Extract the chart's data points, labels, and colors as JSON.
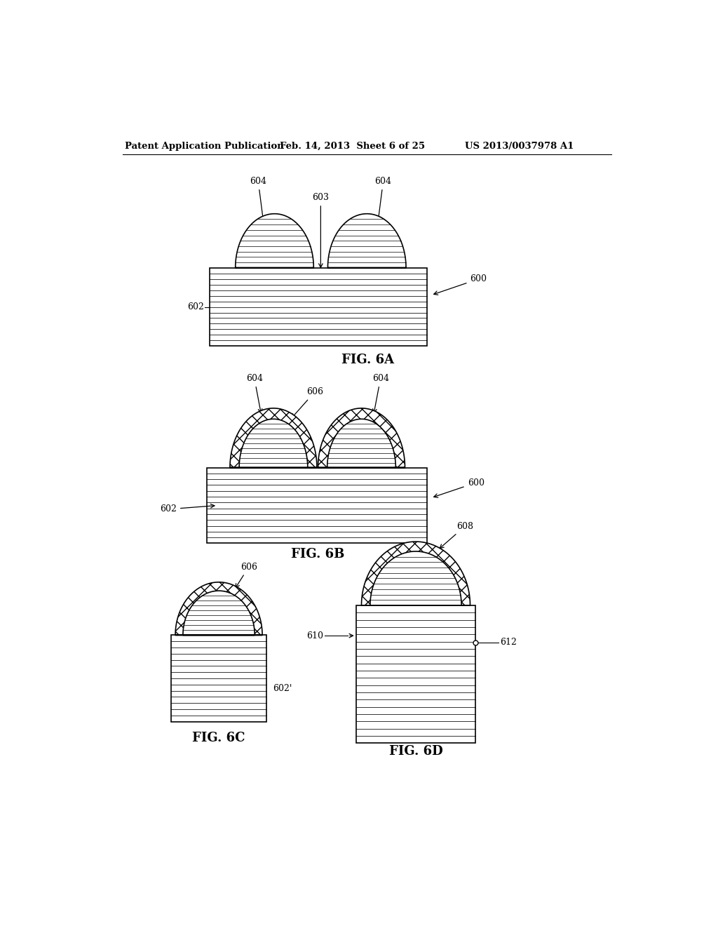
{
  "bg_color": "#ffffff",
  "header_left": "Patent Application Publication",
  "header_mid": "Feb. 14, 2013  Sheet 6 of 25",
  "header_right": "US 2013/0037978 A1",
  "fig6a_title": "FIG. 6A",
  "fig6b_title": "FIG. 6B",
  "fig6c_title": "FIG. 6C",
  "fig6d_title": "FIG. 6D",
  "line_color": "#000000"
}
